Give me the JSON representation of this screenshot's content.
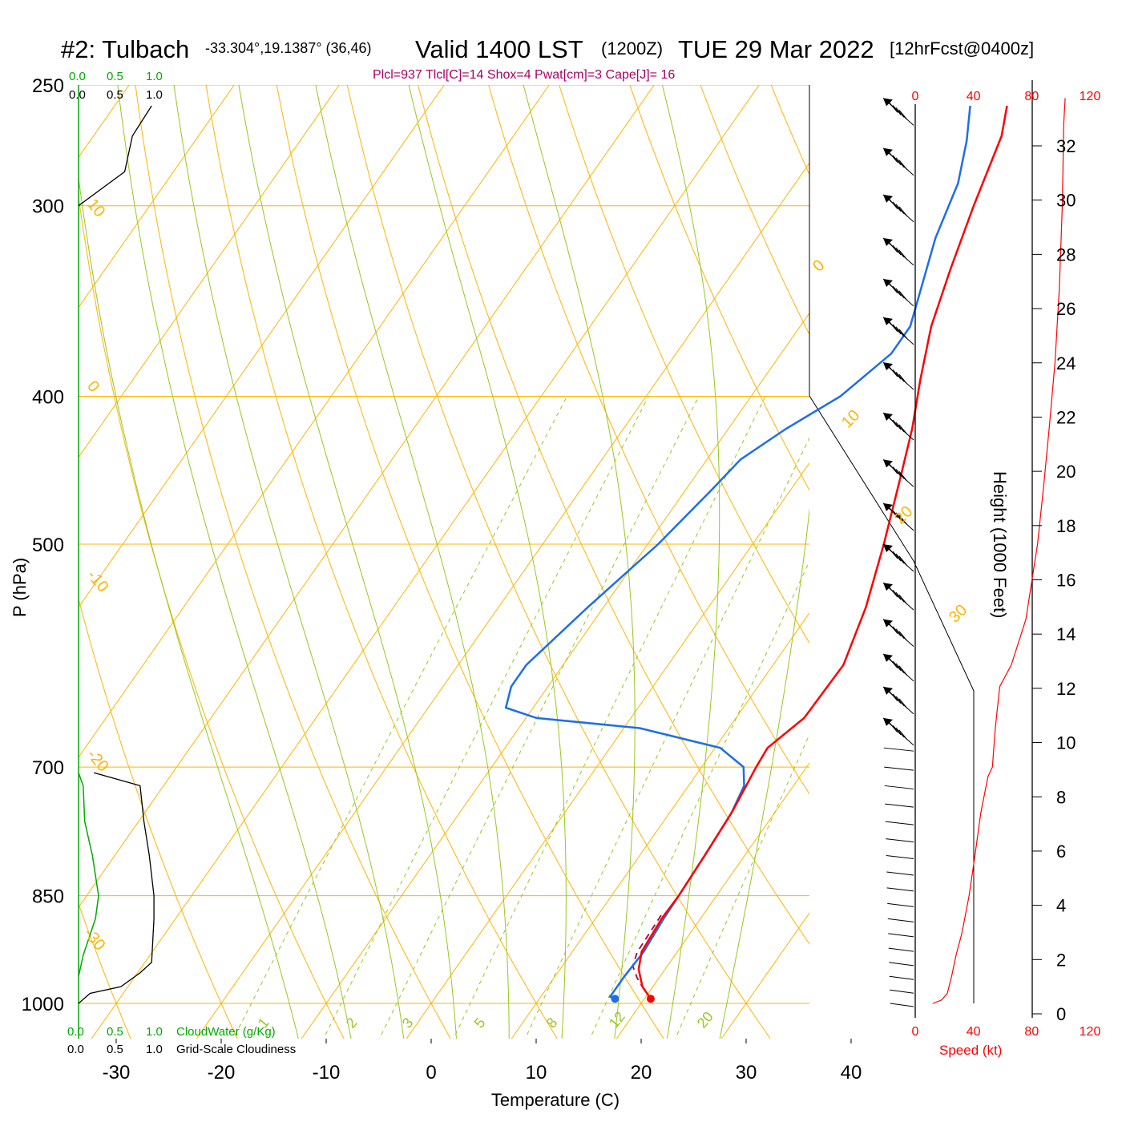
{
  "header": {
    "station": "#2: Tulbach",
    "coords": "-33.304°,19.1387° (36,46)",
    "valid": "Valid 1400 LST",
    "zulu": "(1200Z)",
    "date": "TUE 29 Mar 2022",
    "forecast": "[12hrFcst@0400z]",
    "indices": "Plcl=937 Tlcl[C]=14 Shox=4 Pwat[cm]=3 Cape[J]= 16"
  },
  "colors": {
    "temperature": "#ff0000",
    "dewpoint": "#1e6ee6",
    "isotherm": "#ffb400",
    "dry_adiabat": "#ffb400",
    "moist_adiabat": "#96c81e",
    "mixing_ratio": "#96c81e",
    "cloud_water": "#00aa00",
    "parcel": "#aa0044",
    "speed": "#ff0000",
    "indices": "#aa0066"
  },
  "chart_data": {
    "type": "line",
    "xlabel": "Temperature (C)",
    "ylabel": "P (hPa)",
    "y2label": "Height (1000 Feet)",
    "x_ticks": [
      "-30",
      "-20",
      "-10",
      "0",
      "10",
      "20",
      "30",
      "40"
    ],
    "pressure_ticks": [
      "250",
      "300",
      "400",
      "500",
      "700",
      "850",
      "1000"
    ],
    "height_ticks": [
      "0",
      "2",
      "4",
      "6",
      "8",
      "10",
      "12",
      "14",
      "16",
      "18",
      "20",
      "22",
      "24",
      "26",
      "28",
      "30",
      "32"
    ],
    "speed_ticks": [
      "0",
      "40",
      "80",
      "120"
    ],
    "speed_label": "Speed (kt)",
    "cloud_scale": [
      "0.0",
      "0.5",
      "1.0"
    ],
    "cloudwater_label": "CloudWater (g/Kg)",
    "cloudiness_label": "Grid-Scale Cloudiness",
    "isotherm_labels": [
      "10",
      "0",
      "-10",
      "-20",
      "-30",
      "0",
      "10",
      "20",
      "30"
    ],
    "mixing_ratio_labels": [
      "1",
      "2",
      "3",
      "5",
      "8",
      "12",
      "20"
    ],
    "log_pressure": true,
    "skew": true,
    "series": [
      {
        "name": "temperature",
        "points": [
          [
            20.6,
            993
          ],
          [
            19,
            975
          ],
          [
            17.5,
            950
          ],
          [
            16.6,
            925
          ],
          [
            16.3,
            880
          ],
          [
            16.4,
            850
          ],
          [
            16.2,
            800
          ],
          [
            15.9,
            750
          ],
          [
            15.5,
            720
          ],
          [
            15.2,
            700
          ],
          [
            15,
            680
          ],
          [
            16.5,
            650
          ],
          [
            16.7,
            600
          ],
          [
            15,
            550
          ],
          [
            12.5,
            500
          ],
          [
            9.5,
            450
          ],
          [
            7.5,
            420
          ],
          [
            5,
            390
          ],
          [
            2.5,
            360
          ],
          [
            0.5,
            330
          ],
          [
            -1.5,
            300
          ],
          [
            -3.5,
            270
          ],
          [
            -5,
            258
          ]
        ]
      },
      {
        "name": "dewpoint",
        "points": [
          [
            17.2,
            993
          ],
          [
            16.6,
            990
          ],
          [
            16.6,
            960
          ],
          [
            16.8,
            925
          ],
          [
            16.5,
            880
          ],
          [
            16.4,
            850
          ],
          [
            16.2,
            800
          ],
          [
            15.9,
            750
          ],
          [
            15.3,
            720
          ],
          [
            14,
            700
          ],
          [
            10.5,
            680
          ],
          [
            1.5,
            660
          ],
          [
            -9,
            650
          ],
          [
            -12.6,
            640
          ],
          [
            -13.5,
            620
          ],
          [
            -13.5,
            600
          ],
          [
            -11.5,
            550
          ],
          [
            -9,
            500
          ],
          [
            -7.5,
            460
          ],
          [
            -6.8,
            440
          ],
          [
            -4.5,
            420
          ],
          [
            -1.5,
            400
          ],
          [
            0.5,
            375
          ],
          [
            0.5,
            360
          ],
          [
            -1,
            340
          ],
          [
            -3,
            315
          ],
          [
            -4.5,
            290
          ],
          [
            -6.5,
            272
          ],
          [
            -8.5,
            258
          ]
        ]
      },
      {
        "name": "parcel",
        "points": [
          [
            20.6,
            993
          ],
          [
            19.4,
            980
          ],
          [
            17.9,
            962
          ],
          [
            16.7,
            945
          ],
          [
            16.2,
            925
          ],
          [
            16.1,
            895
          ],
          [
            16.0,
            870
          ]
        ]
      }
    ],
    "cloud_fraction_profile": [
      [
        0,
        1000
      ],
      [
        0.15,
        985
      ],
      [
        0.55,
        975
      ],
      [
        0.8,
        955
      ],
      [
        0.95,
        940
      ],
      [
        0.98,
        880
      ],
      [
        0.98,
        850
      ],
      [
        0.92,
        800
      ],
      [
        0.85,
        760
      ],
      [
        0.8,
        720
      ],
      [
        0.2,
        706
      ]
    ],
    "cloud_water_profile": [
      [
        0,
        960
      ],
      [
        0.06,
        930
      ],
      [
        0.22,
        880
      ],
      [
        0.26,
        850
      ],
      [
        0.18,
        800
      ],
      [
        0.08,
        760
      ],
      [
        0.06,
        720
      ],
      [
        0,
        706
      ]
    ],
    "upper_cloudiness_profile": [
      [
        0,
        300
      ],
      [
        0.6,
        285
      ],
      [
        0.7,
        270
      ],
      [
        0.95,
        258
      ]
    ],
    "wind_speed_profile": [
      [
        12,
        1000
      ],
      [
        18,
        995
      ],
      [
        22,
        985
      ],
      [
        25,
        960
      ],
      [
        28,
        930
      ],
      [
        32,
        900
      ],
      [
        37,
        850
      ],
      [
        41,
        800
      ],
      [
        45,
        750
      ],
      [
        50,
        710
      ],
      [
        53,
        700
      ],
      [
        55,
        660
      ],
      [
        58,
        620
      ],
      [
        66,
        600
      ],
      [
        76,
        560
      ],
      [
        84,
        500
      ],
      [
        88,
        460
      ],
      [
        92,
        420
      ],
      [
        96,
        380
      ],
      [
        99,
        340
      ],
      [
        101,
        300
      ],
      [
        102,
        265
      ],
      [
        103,
        255
      ]
    ],
    "wind_barbs_pressure": [
      255,
      275,
      295,
      315,
      335,
      355,
      380,
      410,
      440,
      470,
      500,
      530,
      560,
      590,
      620,
      650,
      680,
      700,
      720,
      740,
      760,
      780,
      800,
      820,
      840,
      860,
      880,
      900,
      920,
      940,
      960,
      980,
      1000
    ]
  }
}
